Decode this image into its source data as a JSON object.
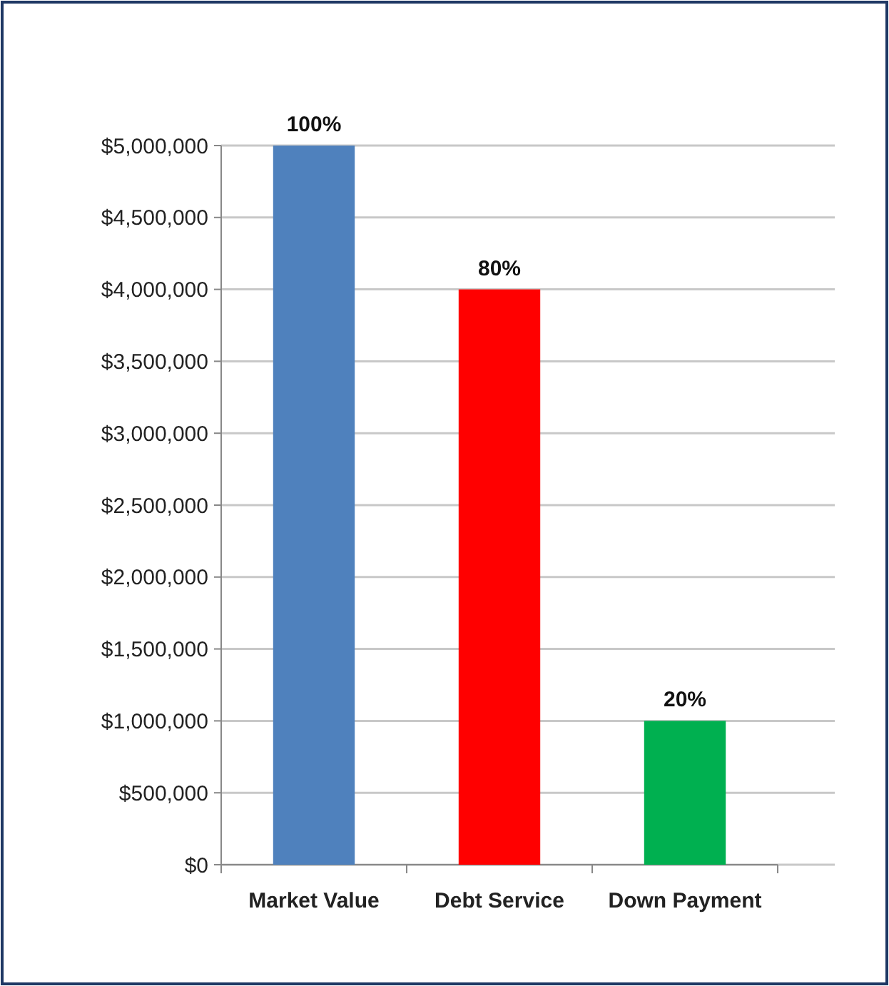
{
  "chart_data": {
    "type": "bar",
    "categories": [
      "Market Value",
      "Debt Service",
      "Down Payment"
    ],
    "values": [
      5000000,
      4000000,
      1000000
    ],
    "colors": [
      "#4f81bd",
      "#ff0000",
      "#00b050"
    ],
    "annotations": [
      {
        "text": "100%",
        "x": "Market Value",
        "y": 5000000
      },
      {
        "text": "80%",
        "x": "Debt Service",
        "y": 4000000
      },
      {
        "text": "20%",
        "x": "Down Payment",
        "y": 1000000
      }
    ],
    "ylim": [
      0,
      5000000
    ],
    "yticks": [
      {
        "value": 0,
        "label": "$0"
      },
      {
        "value": 500000,
        "label": "$500,000"
      },
      {
        "value": 1000000,
        "label": "$1,000,000"
      },
      {
        "value": 1500000,
        "label": "$1,500,000"
      },
      {
        "value": 2000000,
        "label": "$2,000,000"
      },
      {
        "value": 2500000,
        "label": "$2,500,000"
      },
      {
        "value": 3000000,
        "label": "$3,000,000"
      },
      {
        "value": 3500000,
        "label": "$3,500,000"
      },
      {
        "value": 4000000,
        "label": "$4,000,000"
      },
      {
        "value": 4500000,
        "label": "$4,500,000"
      },
      {
        "value": 5000000,
        "label": "$5,000,000"
      }
    ],
    "grid": "y"
  }
}
